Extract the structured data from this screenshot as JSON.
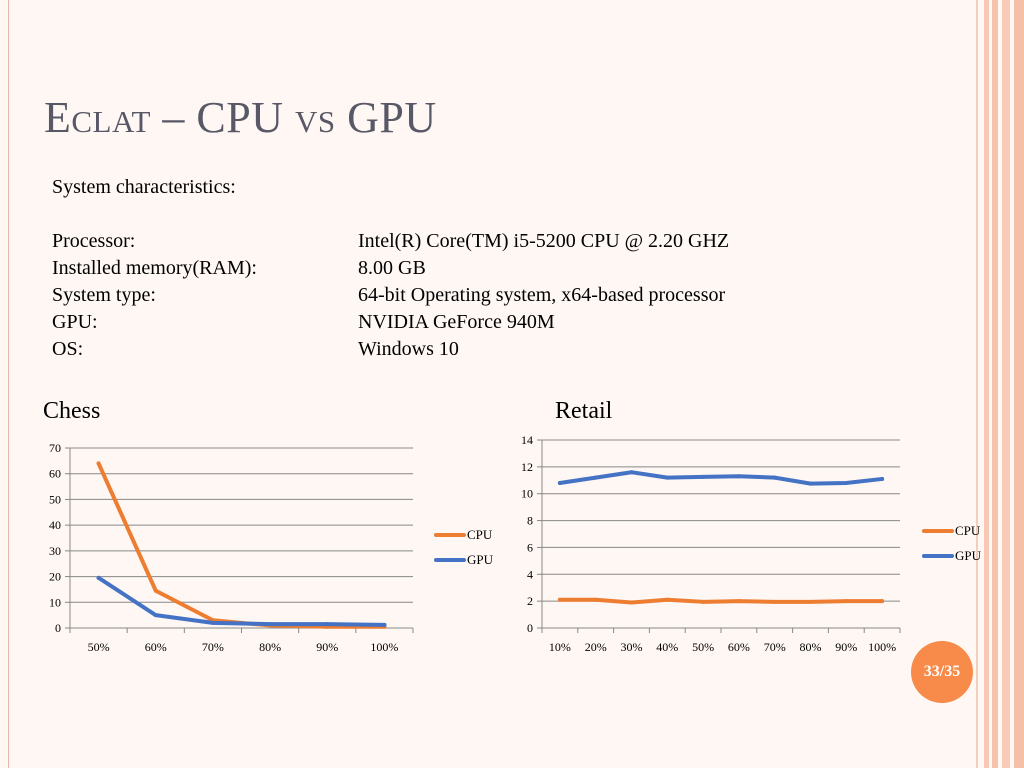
{
  "slide": {
    "title": "Eclat – CPU vs GPU",
    "heading": "System characteristics:",
    "specs": [
      {
        "label": "Processor:",
        "value": "Intel(R) Core(TM) i5-5200 CPU @ 2.20 GHZ"
      },
      {
        "label": "Installed memory(RAM):",
        "value": "8.00 GB"
      },
      {
        "label": "System type:",
        "value": "64-bit Operating system, x64-based processor"
      },
      {
        "label": "GPU:",
        "value": "NVIDIA GeForce 940M"
      },
      {
        "label": "OS:",
        "value": "Windows 10"
      }
    ],
    "slide_number": "33/35"
  },
  "colors": {
    "cpu": "#ed7d31",
    "gpu": "#4472c4",
    "grid": "#888888",
    "title": "#585866",
    "badge": "#f88a4a"
  },
  "chart_data": [
    {
      "type": "line",
      "title": "Chess",
      "categories": [
        "50%",
        "60%",
        "70%",
        "80%",
        "90%",
        "100%"
      ],
      "ylim": [
        0,
        70
      ],
      "yticks": [
        0,
        10,
        20,
        30,
        40,
        50,
        60,
        70
      ],
      "legend": "right",
      "series": [
        {
          "name": "CPU",
          "values": [
            64,
            14.5,
            3,
            1,
            0.5,
            0.5
          ]
        },
        {
          "name": "GPU",
          "values": [
            19.5,
            5,
            2,
            1.5,
            1.5,
            1.2
          ]
        }
      ]
    },
    {
      "type": "line",
      "title": "Retail",
      "categories": [
        "10%",
        "20%",
        "30%",
        "40%",
        "50%",
        "60%",
        "70%",
        "80%",
        "90%",
        "100%"
      ],
      "ylim": [
        0,
        14
      ],
      "yticks": [
        0,
        2,
        4,
        6,
        8,
        10,
        12,
        14
      ],
      "legend": "right",
      "series": [
        {
          "name": "CPU",
          "values": [
            2.1,
            2.1,
            1.9,
            2.1,
            1.95,
            2.0,
            1.95,
            1.95,
            2.0,
            2.0
          ]
        },
        {
          "name": "GPU",
          "values": [
            10.8,
            11.2,
            11.6,
            11.2,
            11.25,
            11.3,
            11.2,
            10.75,
            10.8,
            11.1
          ]
        }
      ]
    }
  ]
}
